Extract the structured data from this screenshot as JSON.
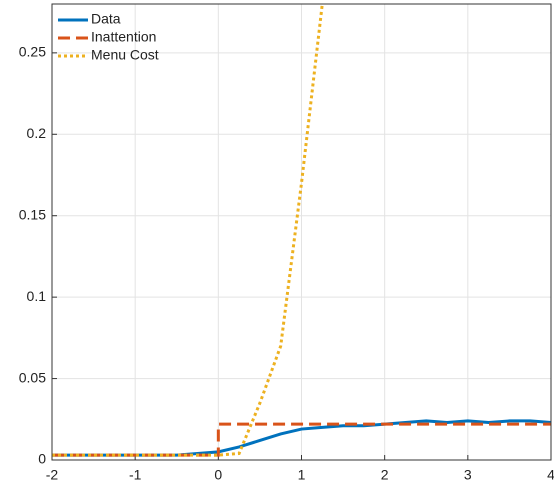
{
  "chart_data": {
    "type": "line",
    "series": [
      {
        "name": "Data",
        "color": "#0072bd",
        "dash": "solid",
        "x": [
          -2,
          -1.75,
          -1.5,
          -1.25,
          -1,
          -0.75,
          -0.5,
          -0.25,
          0,
          0.25,
          0.5,
          0.75,
          1,
          1.25,
          1.5,
          1.75,
          2,
          2.25,
          2.5,
          2.75,
          3,
          3.25,
          3.5,
          3.75,
          4
        ],
        "values": [
          0.003,
          0.003,
          0.003,
          0.003,
          0.003,
          0.003,
          0.003,
          0.004,
          0.005,
          0.008,
          0.012,
          0.016,
          0.019,
          0.02,
          0.021,
          0.021,
          0.022,
          0.023,
          0.024,
          0.023,
          0.024,
          0.023,
          0.024,
          0.024,
          0.023
        ]
      },
      {
        "name": "Inattention",
        "color": "#d95319",
        "dash": "dashed",
        "x": [
          -2,
          0,
          0,
          4
        ],
        "values": [
          0.003,
          0.003,
          0.022,
          0.022
        ]
      },
      {
        "name": "Menu Cost",
        "color": "#edb120",
        "dash": "dotted",
        "x": [
          -2,
          -1.5,
          -1,
          -0.5,
          0,
          0.25,
          0.5,
          0.75,
          1,
          1.25
        ],
        "values": [
          0.003,
          0.003,
          0.003,
          0.003,
          0.003,
          0.004,
          0.035,
          0.07,
          0.17,
          0.28
        ]
      }
    ],
    "xlim": [
      -2,
      4
    ],
    "xticks": [
      -2,
      -1,
      0,
      1,
      2,
      3,
      4
    ],
    "ylim": [
      0,
      0.28
    ],
    "yticks": [
      0,
      0.05,
      0.1,
      0.15,
      0.2,
      0.25
    ],
    "grid": true,
    "legend": "top-left"
  }
}
